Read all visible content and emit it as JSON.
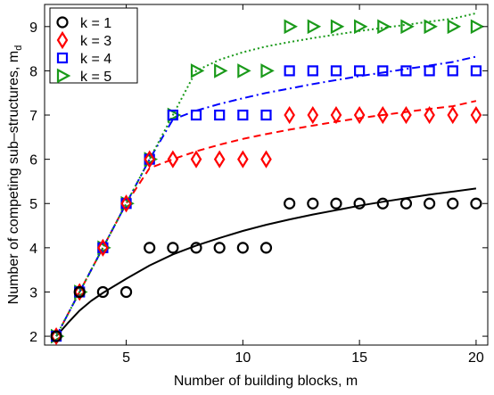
{
  "chart_data": {
    "type": "scatter",
    "xlabel": "Number of building blocks, m",
    "ylabel": "Number of competing sub–structures, m",
    "ylabel_sub": "d",
    "xlim": [
      1.5,
      20.5
    ],
    "ylim": [
      1.8,
      9.5
    ],
    "xticks": [
      5,
      10,
      15,
      20
    ],
    "yticks": [
      2,
      3,
      4,
      5,
      6,
      7,
      8,
      9
    ],
    "grid": false,
    "legend_position": "top-left",
    "series": [
      {
        "name": "k = 1",
        "marker": "circle",
        "color": "#000000",
        "x": [
          2,
          3,
          4,
          5,
          6,
          7,
          8,
          9,
          10,
          11,
          12,
          13,
          14,
          15,
          16,
          17,
          18,
          19,
          20
        ],
        "y": [
          2,
          3,
          3,
          3,
          4,
          4,
          4,
          4,
          4,
          4,
          5,
          5,
          5,
          5,
          5,
          5,
          5,
          5,
          5
        ],
        "fit": {
          "style": "solid",
          "x": [
            2,
            2.5,
            3,
            3.5,
            4,
            5,
            6,
            7,
            8,
            9,
            10,
            11,
            12,
            13,
            14,
            15,
            16,
            17,
            18,
            19,
            20
          ],
          "y": [
            2.0,
            2.3,
            2.58,
            2.8,
            2.98,
            3.3,
            3.6,
            3.85,
            4.05,
            4.22,
            4.38,
            4.52,
            4.64,
            4.75,
            4.85,
            4.95,
            5.04,
            5.12,
            5.2,
            5.27,
            5.34
          ]
        }
      },
      {
        "name": "k = 3",
        "marker": "diamond",
        "color": "#ff0000",
        "x": [
          2,
          3,
          4,
          5,
          6,
          7,
          8,
          9,
          10,
          11,
          12,
          13,
          14,
          15,
          16,
          17,
          18,
          19,
          20
        ],
        "y": [
          2,
          3,
          4,
          5,
          6,
          6,
          6,
          6,
          6,
          6,
          7,
          7,
          7,
          7,
          7,
          7,
          7,
          7,
          7
        ],
        "fit": {
          "style": "dashed",
          "x": [
            2,
            3,
            4,
            5,
            6,
            6.5,
            7,
            8,
            9,
            10,
            11,
            12,
            13,
            14,
            15,
            16,
            17,
            18,
            19,
            20
          ],
          "y": [
            2.0,
            3.0,
            4.0,
            5.0,
            5.8,
            5.9,
            6.0,
            6.18,
            6.33,
            6.46,
            6.57,
            6.67,
            6.76,
            6.85,
            6.93,
            7.0,
            7.07,
            7.14,
            7.2,
            7.32
          ]
        }
      },
      {
        "name": "k = 4",
        "marker": "square",
        "color": "#0000ff",
        "x": [
          2,
          3,
          4,
          5,
          6,
          7,
          8,
          9,
          10,
          11,
          12,
          13,
          14,
          15,
          16,
          17,
          18,
          19,
          20
        ],
        "y": [
          2,
          3,
          4,
          5,
          6,
          7,
          7,
          7,
          7,
          7,
          8,
          8,
          8,
          8,
          8,
          8,
          8,
          8,
          8
        ],
        "fit": {
          "style": "dashdot",
          "x": [
            2,
            3,
            4,
            5,
            6,
            7,
            7.5,
            8,
            9,
            10,
            11,
            12,
            13,
            14,
            15,
            16,
            17,
            18,
            19,
            20
          ],
          "y": [
            2.0,
            3.0,
            4.0,
            5.0,
            6.0,
            6.9,
            7.0,
            7.1,
            7.25,
            7.38,
            7.5,
            7.6,
            7.7,
            7.79,
            7.88,
            7.96,
            8.04,
            8.12,
            8.2,
            8.32
          ]
        }
      },
      {
        "name": "k = 5",
        "marker": "triangle-right",
        "color": "#1a9a1a",
        "x": [
          2,
          3,
          4,
          5,
          6,
          7,
          8,
          9,
          10,
          11,
          12,
          13,
          14,
          15,
          16,
          17,
          18,
          19,
          20
        ],
        "y": [
          2,
          3,
          4,
          5,
          6,
          7,
          8,
          8,
          8,
          8,
          9,
          9,
          9,
          9,
          9,
          9,
          9,
          9,
          9
        ],
        "fit": {
          "style": "dotted",
          "x": [
            2,
            3,
            4,
            5,
            6,
            7,
            8,
            9,
            10,
            11,
            12,
            13,
            14,
            15,
            16,
            17,
            18,
            19,
            20
          ],
          "y": [
            2.0,
            3.0,
            4.0,
            5.0,
            6.0,
            7.0,
            8.0,
            8.25,
            8.42,
            8.55,
            8.65,
            8.74,
            8.82,
            8.9,
            8.97,
            9.04,
            9.11,
            9.18,
            9.3
          ]
        }
      }
    ]
  }
}
